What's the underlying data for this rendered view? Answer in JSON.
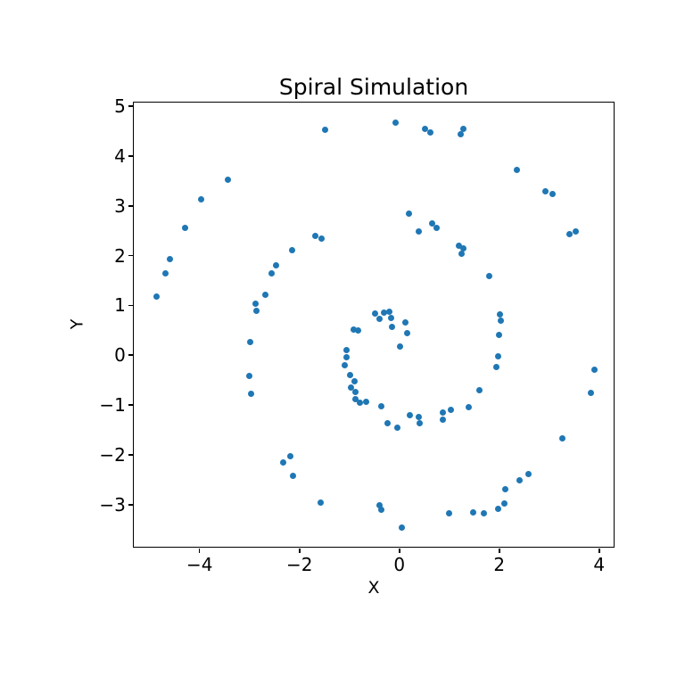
{
  "figure": {
    "title": "Spiral Simulation",
    "xlabel": "X",
    "ylabel": "Y"
  },
  "chart_data": {
    "type": "scatter",
    "title": "Spiral Simulation",
    "xlabel": "X",
    "ylabel": "Y",
    "grid": false,
    "legend": null,
    "marker_color": "#1f77b4",
    "marker_diameter_px": 7,
    "axis_color": "#000000",
    "xlim": [
      -5.3,
      4.31
    ],
    "ylim": [
      -3.85,
      5.07
    ],
    "xticks": [
      {
        "value": -4,
        "label": "−4"
      },
      {
        "value": -2,
        "label": "−2"
      },
      {
        "value": 0,
        "label": "0"
      },
      {
        "value": 2,
        "label": "2"
      },
      {
        "value": 4,
        "label": "4"
      }
    ],
    "yticks": [
      {
        "value": -3,
        "label": "−3"
      },
      {
        "value": -2,
        "label": "−2"
      },
      {
        "value": -1,
        "label": "−1"
      },
      {
        "value": 0,
        "label": "0"
      },
      {
        "value": 1,
        "label": "1"
      },
      {
        "value": 2,
        "label": "2"
      },
      {
        "value": 3,
        "label": "3"
      },
      {
        "value": 4,
        "label": "4"
      },
      {
        "value": 5,
        "label": "5"
      }
    ],
    "points": [
      [
        -4.85,
        1.16
      ],
      [
        -4.67,
        1.64
      ],
      [
        -4.59,
        1.91
      ],
      [
        -4.28,
        2.55
      ],
      [
        -3.95,
        3.11
      ],
      [
        -3.42,
        3.51
      ],
      [
        -1.48,
        4.52
      ],
      [
        -0.07,
        4.66
      ],
      [
        0.52,
        4.54
      ],
      [
        0.64,
        4.47
      ],
      [
        1.23,
        4.43
      ],
      [
        1.3,
        4.54
      ],
      [
        2.37,
        3.71
      ],
      [
        2.94,
        3.28
      ],
      [
        3.08,
        3.22
      ],
      [
        3.42,
        2.42
      ],
      [
        3.54,
        2.48
      ],
      [
        3.91,
        -0.31
      ],
      [
        3.85,
        -0.76
      ],
      [
        3.27,
        -1.68
      ],
      [
        2.6,
        -2.4
      ],
      [
        2.41,
        -2.52
      ],
      [
        2.13,
        -2.7
      ],
      [
        2.11,
        -2.98
      ],
      [
        1.98,
        -3.09
      ],
      [
        1.71,
        -3.19
      ],
      [
        1.48,
        -3.16
      ],
      [
        1.01,
        -3.19
      ],
      [
        0.06,
        -3.47
      ],
      [
        -0.39,
        -3.03
      ],
      [
        -0.35,
        -3.12
      ],
      [
        -1.57,
        -2.97
      ],
      [
        -2.11,
        -2.44
      ],
      [
        -2.18,
        -2.03
      ],
      [
        -2.32,
        -2.17
      ],
      [
        -2.97,
        0.25
      ],
      [
        -2.99,
        -0.42
      ],
      [
        -2.95,
        -0.79
      ],
      [
        -2.85,
        0.88
      ],
      [
        -2.86,
        1.02
      ],
      [
        -2.68,
        1.21
      ],
      [
        -2.55,
        1.63
      ],
      [
        -2.46,
        1.79
      ],
      [
        -2.13,
        2.09
      ],
      [
        -1.68,
        2.38
      ],
      [
        -1.54,
        2.33
      ],
      [
        0.21,
        2.83
      ],
      [
        0.4,
        2.48
      ],
      [
        0.67,
        2.63
      ],
      [
        0.76,
        2.54
      ],
      [
        1.2,
        2.19
      ],
      [
        1.29,
        2.13
      ],
      [
        1.25,
        2.03
      ],
      [
        1.81,
        1.58
      ],
      [
        2.02,
        0.81
      ],
      [
        2.05,
        0.69
      ],
      [
        2.01,
        0.39
      ],
      [
        1.99,
        -0.03
      ],
      [
        1.96,
        -0.24
      ],
      [
        1.61,
        -0.71
      ],
      [
        1.4,
        -1.06
      ],
      [
        -0.91,
        0.5
      ],
      [
        -0.81,
        0.48
      ],
      [
        -1.05,
        0.1
      ],
      [
        -1.04,
        -0.05
      ],
      [
        -1.08,
        -0.21
      ],
      [
        -0.97,
        -0.4
      ],
      [
        -0.88,
        -0.53
      ],
      [
        -0.95,
        -0.66
      ],
      [
        -0.87,
        -0.74
      ],
      [
        -0.87,
        -0.9
      ],
      [
        -0.77,
        -0.96
      ],
      [
        -0.65,
        -0.94
      ],
      [
        -0.35,
        -1.03
      ],
      [
        -0.23,
        -1.37
      ],
      [
        -0.03,
        -1.46
      ],
      [
        0.23,
        -1.22
      ],
      [
        0.4,
        -1.25
      ],
      [
        0.41,
        -1.37
      ],
      [
        0.89,
        -1.16
      ],
      [
        0.89,
        -1.31
      ],
      [
        1.04,
        -1.1
      ],
      [
        -0.48,
        0.82
      ],
      [
        -0.38,
        0.72
      ],
      [
        -0.3,
        0.85
      ],
      [
        -0.19,
        0.87
      ],
      [
        -0.16,
        0.73
      ],
      [
        -0.14,
        0.56
      ],
      [
        0.13,
        0.65
      ],
      [
        0.16,
        0.44
      ],
      [
        0.03,
        0.16
      ]
    ]
  }
}
